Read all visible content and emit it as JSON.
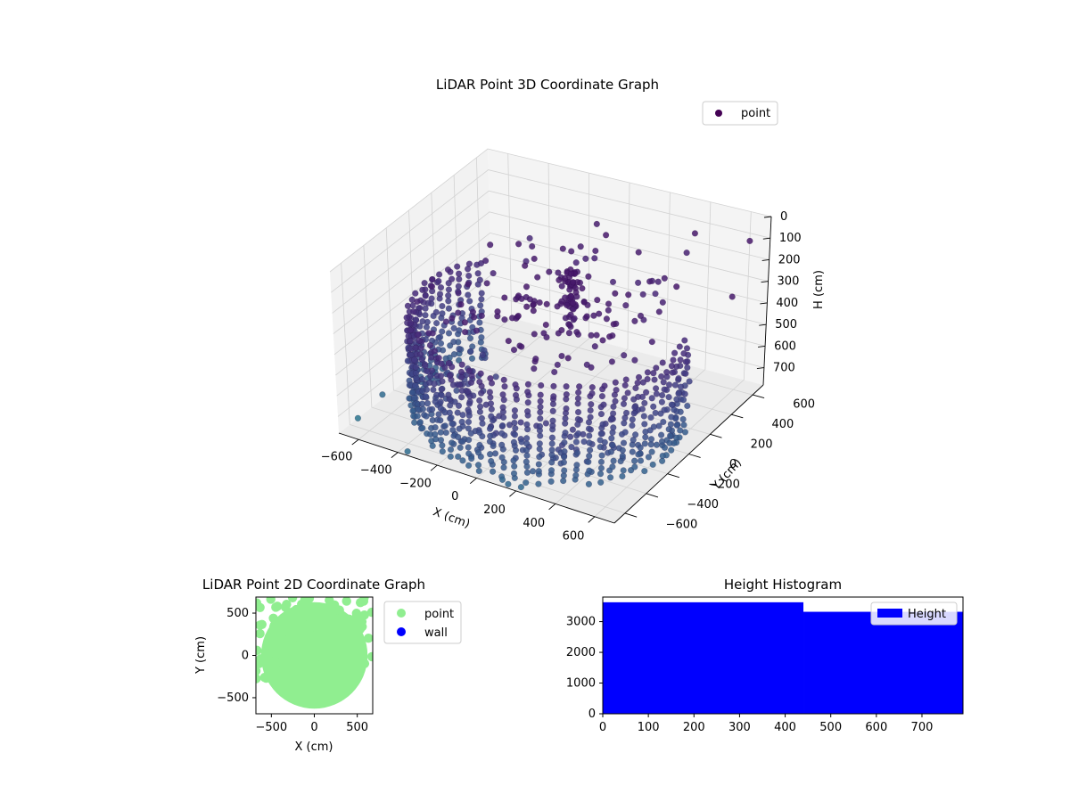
{
  "figure": {
    "background": "#ffffff"
  },
  "chart_data": [
    {
      "id": "3d",
      "type": "scatter",
      "projection": "3d",
      "title": "LiDAR Point 3D Coordinate Graph",
      "xlabel": "X (cm)",
      "ylabel": "Y (cm)",
      "zlabel": "H (cm)",
      "xlim": [
        -700,
        700
      ],
      "ylim": [
        -700,
        700
      ],
      "zlim": [
        780,
        0
      ],
      "x_ticks": [
        "−600",
        "−400",
        "−200",
        "0",
        "200",
        "400",
        "600"
      ],
      "y_ticks": [
        "−600",
        "−400",
        "−200",
        "0",
        "200",
        "400",
        "600"
      ],
      "z_ticks": [
        "0",
        "100",
        "200",
        "300",
        "400",
        "500",
        "600",
        "700"
      ],
      "legend": {
        "position": "top-right",
        "entries": [
          {
            "label": "point",
            "color": "#440154"
          }
        ]
      },
      "colormap": "viridis",
      "structure": {
        "wall_radius_cm": 620,
        "wall_height_range_cm": [
          330,
          780
        ],
        "wall_angle_range_deg": [
          150,
          370
        ],
        "ring_point_count": 44,
        "ring_levels_cm": [
          330,
          360,
          390,
          420,
          450,
          480,
          510,
          540,
          570,
          600,
          630,
          660,
          690,
          720,
          750,
          780
        ],
        "roof_height_range_cm": [
          200,
          340
        ],
        "outliers": [
          {
            "x": -150,
            "y": 680,
            "z": 220
          },
          {
            "x": 640,
            "y": 620,
            "z": 90
          },
          {
            "x": 700,
            "y": 350,
            "z": 210
          },
          {
            "x": 690,
            "y": -50,
            "z": 480
          },
          {
            "x": 660,
            "y": -420,
            "z": 600
          },
          {
            "x": -640,
            "y": 120,
            "z": 380
          },
          {
            "x": -700,
            "y": -300,
            "z": 760
          },
          {
            "x": -680,
            "y": -560,
            "z": 760
          },
          {
            "x": -350,
            "y": -700,
            "z": 760
          },
          {
            "x": 120,
            "y": -680,
            "z": 760
          },
          {
            "x": 160,
            "y": -700,
            "z": 760
          },
          {
            "x": 220,
            "y": -690,
            "z": 760
          },
          {
            "x": 520,
            "y": 160,
            "z": 120
          },
          {
            "x": 420,
            "y": 520,
            "z": 60
          },
          {
            "x": 30,
            "y": 430,
            "z": 120
          },
          {
            "x": -420,
            "y": 560,
            "z": 300
          },
          {
            "x": 300,
            "y": 680,
            "z": 250
          }
        ]
      }
    },
    {
      "id": "2d",
      "type": "scatter",
      "title": "LiDAR Point 2D Coordinate Graph",
      "xlabel": "X (cm)",
      "ylabel": "Y (cm)",
      "xlim": [
        -680,
        680
      ],
      "ylim": [
        -690,
        690
      ],
      "x_ticks": [
        "−500",
        "0",
        "500"
      ],
      "y_ticks": [
        "−500",
        "0",
        "500"
      ],
      "x_tick_values": [
        -500,
        0,
        500
      ],
      "y_tick_values": [
        -500,
        0,
        500
      ],
      "disc_radius_cm": 620,
      "series": [
        {
          "name": "point",
          "color": "#90ee90"
        },
        {
          "name": "wall",
          "color": "#0000ff"
        }
      ],
      "legend": {
        "position": "right-outside"
      }
    },
    {
      "id": "hist",
      "type": "bar",
      "title": "Height Histogram",
      "xlim": [
        0,
        790
      ],
      "ylim": [
        0,
        3800
      ],
      "x_ticks": [
        "0",
        "100",
        "200",
        "300",
        "400",
        "500",
        "600",
        "700"
      ],
      "x_tick_values": [
        0,
        100,
        200,
        300,
        400,
        500,
        600,
        700
      ],
      "y_ticks": [
        "0",
        "1000",
        "2000",
        "3000"
      ],
      "y_tick_values": [
        0,
        1000,
        2000,
        3000
      ],
      "bins": [
        {
          "start": 0,
          "end": 440,
          "count": 3630
        },
        {
          "start": 440,
          "end": 790,
          "count": 3320
        }
      ],
      "series": [
        {
          "name": "Height",
          "color": "#0000ff"
        }
      ],
      "legend": {
        "position": "top-right"
      }
    }
  ]
}
